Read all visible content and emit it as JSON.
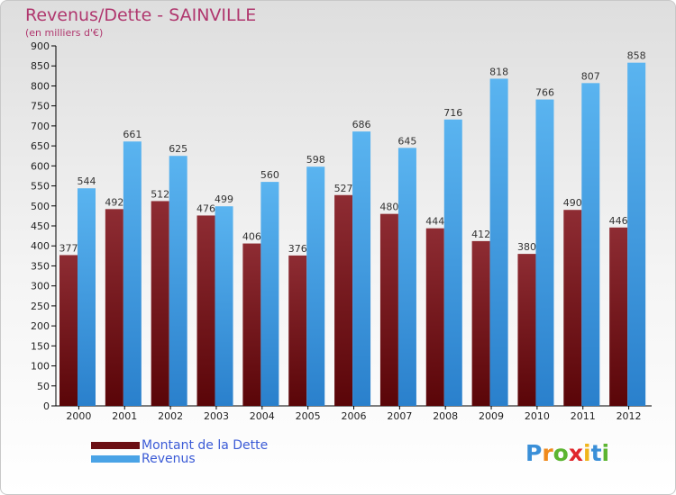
{
  "header": {
    "title": "Revenus/Dette - SAINVILLE",
    "subtitle": "(en milliers d'€)"
  },
  "chart_data": {
    "type": "bar",
    "categories": [
      "2000",
      "2001",
      "2002",
      "2003",
      "2004",
      "2005",
      "2006",
      "2007",
      "2008",
      "2009",
      "2010",
      "2011",
      "2012"
    ],
    "series": [
      {
        "name": "Montant de la Dette",
        "color": "#7b1a1f",
        "values": [
          377,
          492,
          512,
          476,
          406,
          376,
          527,
          480,
          444,
          412,
          380,
          490,
          446
        ]
      },
      {
        "name": "Revenus",
        "color": "#4aa3e6",
        "values": [
          544,
          661,
          625,
          499,
          560,
          598,
          686,
          645,
          716,
          818,
          766,
          807,
          858
        ]
      }
    ],
    "ylim": [
      0,
      900
    ],
    "ytick_step": 50,
    "grid": false,
    "legend_position": "bottom-left"
  },
  "legend": {
    "items": [
      {
        "label": "Montant de la Dette",
        "color": "#6b0f14"
      },
      {
        "label": "Revenus",
        "color": "#4aa3e6"
      }
    ]
  },
  "logo": {
    "letters": [
      "P",
      "r",
      "o",
      "x",
      "i",
      "t",
      "i"
    ],
    "colors": [
      "#3a8fd8",
      "#f08a1c",
      "#5cb531",
      "#e0262b",
      "#f0b51c",
      "#3a8fd8",
      "#5cb531"
    ]
  }
}
